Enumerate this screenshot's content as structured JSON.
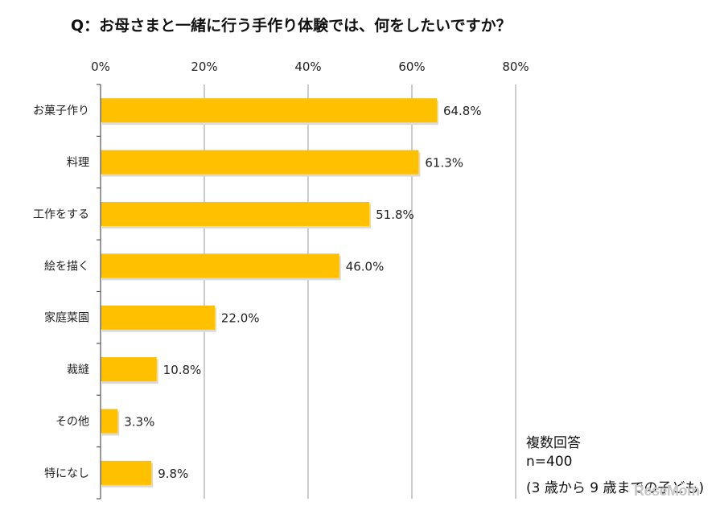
{
  "chart_data": {
    "type": "bar",
    "orientation": "horizontal",
    "title": "Q：お母さまと一緒に行う手作り体験では、何をしたいですか？",
    "categories": [
      "お菓子作り",
      "料理",
      "工作をする",
      "絵を描く",
      "家庭菜園",
      "裁縫",
      "その他",
      "特になし"
    ],
    "values": [
      64.8,
      61.3,
      51.8,
      46.0,
      22.0,
      10.8,
      3.3,
      9.8
    ],
    "value_labels": [
      "64.8%",
      "61.3%",
      "51.8%",
      "46.0%",
      "22.0%",
      "10.8%",
      "3.3%",
      "9.8%"
    ],
    "xlim": [
      0,
      80
    ],
    "x_ticks": [
      0,
      20,
      40,
      60,
      80
    ],
    "x_tick_labels": [
      "0%",
      "20%",
      "40%",
      "60%",
      "80%"
    ],
    "xlabel": "",
    "ylabel": "",
    "grid": true,
    "bar_color": "#ffc000"
  },
  "notes": {
    "line1": "複数回答",
    "line2": "n=400",
    "line3": "(3 歳から 9 歳までの子ども)"
  },
  "watermark": "ReseMom"
}
